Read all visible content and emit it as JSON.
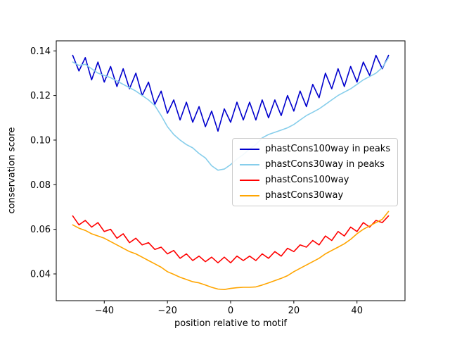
{
  "figure": {
    "background": "#ffffff"
  },
  "chart_data": {
    "type": "line",
    "title": "",
    "xlabel": "position relative to motif",
    "ylabel": "conservation score",
    "xlim": [
      -55.2,
      55.2
    ],
    "ylim": [
      0.028,
      0.1445
    ],
    "xticks": [
      -40,
      -20,
      0,
      20,
      40
    ],
    "yticks": [
      0.04,
      0.06,
      0.08,
      0.1,
      0.12,
      0.14
    ],
    "grid": false,
    "legend_position": "center right",
    "x": [
      -50,
      -48,
      -46,
      -44,
      -42,
      -40,
      -38,
      -36,
      -34,
      -32,
      -30,
      -28,
      -26,
      -24,
      -22,
      -20,
      -18,
      -16,
      -14,
      -12,
      -10,
      -8,
      -6,
      -4,
      -2,
      0,
      2,
      4,
      6,
      8,
      10,
      12,
      14,
      16,
      18,
      20,
      22,
      24,
      26,
      28,
      30,
      32,
      34,
      36,
      38,
      40,
      42,
      44,
      46,
      48,
      50
    ],
    "series": [
      {
        "name": "phastCons100way in peaks",
        "color": "#0000cd",
        "values": [
          0.138,
          0.131,
          0.137,
          0.127,
          0.135,
          0.126,
          0.133,
          0.124,
          0.132,
          0.123,
          0.13,
          0.12,
          0.126,
          0.116,
          0.122,
          0.112,
          0.118,
          0.109,
          0.117,
          0.108,
          0.115,
          0.106,
          0.113,
          0.104,
          0.114,
          0.108,
          0.117,
          0.109,
          0.117,
          0.109,
          0.118,
          0.11,
          0.118,
          0.111,
          0.12,
          0.113,
          0.122,
          0.115,
          0.125,
          0.119,
          0.13,
          0.123,
          0.132,
          0.124,
          0.133,
          0.126,
          0.135,
          0.129,
          0.138,
          0.132,
          0.138
        ]
      },
      {
        "name": "phastCons30way in peaks",
        "color": "#87ceeb",
        "values": [
          0.135,
          0.1335,
          0.134,
          0.132,
          0.13,
          0.129,
          0.128,
          0.1265,
          0.125,
          0.1235,
          0.122,
          0.12,
          0.118,
          0.1155,
          0.111,
          0.106,
          0.1025,
          0.1,
          0.098,
          0.0965,
          0.094,
          0.092,
          0.0885,
          0.0865,
          0.087,
          0.089,
          0.0915,
          0.0935,
          0.096,
          0.098,
          0.101,
          0.1025,
          0.1035,
          0.1045,
          0.1055,
          0.107,
          0.109,
          0.111,
          0.1125,
          0.114,
          0.116,
          0.118,
          0.12,
          0.1215,
          0.123,
          0.125,
          0.127,
          0.1285,
          0.13,
          0.1325,
          0.137
        ]
      },
      {
        "name": "phastCons100way",
        "color": "#ff0000",
        "values": [
          0.066,
          0.062,
          0.064,
          0.061,
          0.063,
          0.059,
          0.06,
          0.056,
          0.058,
          0.054,
          0.056,
          0.053,
          0.054,
          0.051,
          0.052,
          0.049,
          0.0505,
          0.047,
          0.049,
          0.046,
          0.048,
          0.0455,
          0.0475,
          0.045,
          0.0475,
          0.045,
          0.048,
          0.046,
          0.048,
          0.046,
          0.049,
          0.047,
          0.05,
          0.048,
          0.0515,
          0.05,
          0.053,
          0.052,
          0.055,
          0.053,
          0.057,
          0.055,
          0.059,
          0.057,
          0.061,
          0.059,
          0.063,
          0.061,
          0.064,
          0.063,
          0.066
        ]
      },
      {
        "name": "phastCons30way",
        "color": "#ffa500",
        "values": [
          0.062,
          0.0605,
          0.0595,
          0.058,
          0.057,
          0.056,
          0.0545,
          0.053,
          0.0515,
          0.05,
          0.049,
          0.0475,
          0.046,
          0.0445,
          0.043,
          0.041,
          0.0398,
          0.0385,
          0.0375,
          0.0365,
          0.036,
          0.035,
          0.034,
          0.0332,
          0.033,
          0.0335,
          0.0338,
          0.034,
          0.034,
          0.0342,
          0.035,
          0.036,
          0.037,
          0.038,
          0.0392,
          0.041,
          0.0425,
          0.044,
          0.0455,
          0.047,
          0.049,
          0.0505,
          0.052,
          0.0535,
          0.0555,
          0.058,
          0.06,
          0.0615,
          0.063,
          0.0645,
          0.068
        ]
      }
    ]
  }
}
